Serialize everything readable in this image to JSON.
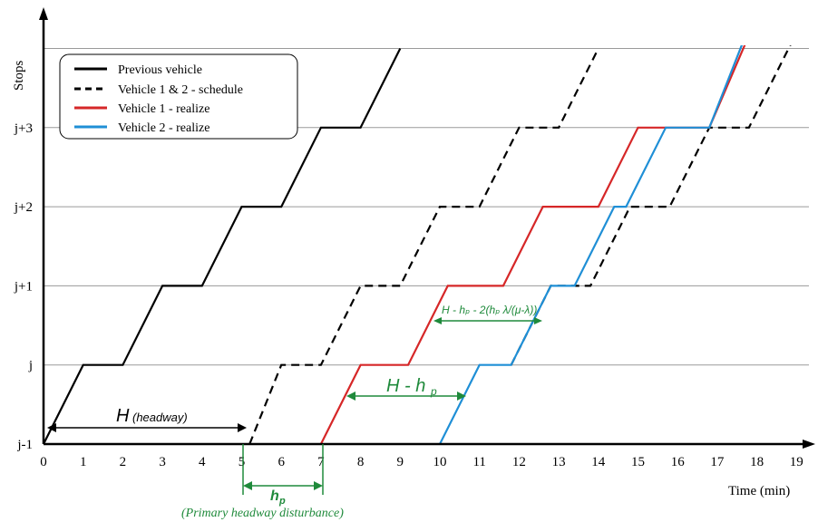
{
  "chart_data": {
    "type": "line",
    "title": "",
    "xlabel": "Time (min)",
    "ylabel": "Stops",
    "xlim": [
      0,
      19
    ],
    "x_ticks": [
      "0",
      "1",
      "2",
      "3",
      "4",
      "5",
      "6",
      "7",
      "8",
      "9",
      "10",
      "11",
      "12",
      "13",
      "14",
      "15",
      "16",
      "17",
      "18",
      "19"
    ],
    "y_tick_labels": [
      "j-1",
      "j",
      "j+1",
      "j+2",
      "j+3"
    ],
    "y_tick_values": [
      0,
      1,
      2,
      3,
      4
    ],
    "grid": "horizontal",
    "legend_position": "top-left",
    "series": [
      {
        "name": "Previous vehicle",
        "color": "#000000",
        "style": "solid",
        "points": [
          [
            0,
            0
          ],
          [
            1,
            1
          ],
          [
            2,
            1
          ],
          [
            3,
            2
          ],
          [
            4,
            2
          ],
          [
            5,
            3
          ],
          [
            6,
            3
          ],
          [
            7,
            4
          ],
          [
            8,
            4
          ],
          [
            9,
            5
          ]
        ]
      },
      {
        "name": "Vehicle 1 & 2 - schedule",
        "color": "#000000",
        "style": "dashed",
        "points": [
          [
            5.2,
            0
          ],
          [
            6,
            1
          ],
          [
            7,
            1
          ],
          [
            8,
            2
          ],
          [
            9,
            2
          ],
          [
            10,
            3
          ],
          [
            11,
            3
          ],
          [
            12,
            4
          ],
          [
            13,
            4
          ],
          [
            14,
            5
          ]
        ]
      },
      {
        "name": "Vehicle 1 & 2 - schedule",
        "color": "#000000",
        "style": "dashed",
        "points": [
          [
            11.8,
            1
          ],
          [
            12.8,
            2
          ],
          [
            13.8,
            2
          ],
          [
            14.8,
            3
          ],
          [
            15.8,
            3
          ],
          [
            16.8,
            4
          ],
          [
            17.8,
            4
          ],
          [
            19,
            5.2
          ]
        ]
      },
      {
        "name": "Vehicle 1 - realize",
        "color": "#d62728",
        "style": "solid",
        "points": [
          [
            7,
            0
          ],
          [
            8,
            1
          ],
          [
            9.2,
            1
          ],
          [
            10.2,
            2
          ],
          [
            11.6,
            2
          ],
          [
            12.6,
            3
          ],
          [
            14,
            3
          ],
          [
            15,
            4
          ],
          [
            16.8,
            4
          ],
          [
            18,
            5.4
          ]
        ]
      },
      {
        "name": "Vehicle 2 - realize",
        "color": "#1f8fd6",
        "style": "solid",
        "points": [
          [
            10,
            0
          ],
          [
            11,
            1
          ],
          [
            11.8,
            1
          ],
          [
            12.8,
            2
          ],
          [
            13.4,
            2
          ],
          [
            14.4,
            3
          ],
          [
            14.7,
            3
          ],
          [
            15.7,
            4
          ],
          [
            16.8,
            4
          ],
          [
            17.9,
            5.4
          ]
        ]
      }
    ],
    "annotations": {
      "headway_label": "H",
      "headway_sub": "(headway)",
      "h_minus_hp": "H - h",
      "h_minus_hp_sub": "p",
      "formula": "H - hₚ - 2(hₚ λ/(μ-λ))",
      "hp_label": "h",
      "hp_sub": "p",
      "hp_caption": "(Primary headway disturbance)"
    },
    "colors": {
      "annotation_green": "#1f8a3b",
      "grid": "#9a9a9a"
    }
  }
}
